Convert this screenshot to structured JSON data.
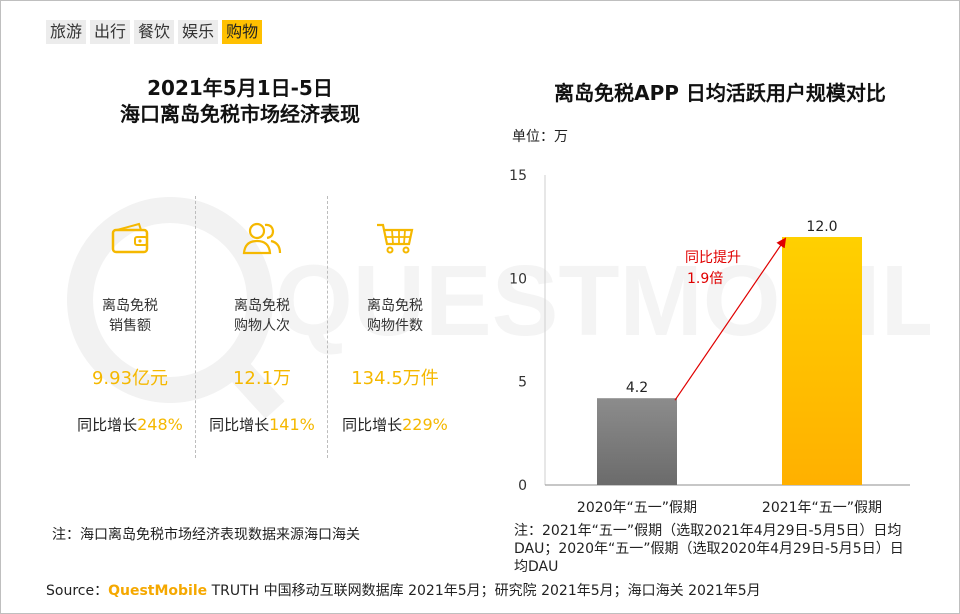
{
  "tabs": [
    {
      "label": "旅游",
      "active": false
    },
    {
      "label": "出行",
      "active": false
    },
    {
      "label": "餐饮",
      "active": false
    },
    {
      "label": "娱乐",
      "active": false
    },
    {
      "label": "购物",
      "active": true
    }
  ],
  "left": {
    "title_line1": "2021年5月1日-5日",
    "title_line2": "海口离岛免税市场经济表现",
    "metrics": [
      {
        "icon": "wallet-icon",
        "label_line1": "离岛免税",
        "label_line2": "销售额",
        "value": "9.93亿元",
        "growth_prefix": "同比增长",
        "growth_pct": "248%"
      },
      {
        "icon": "users-icon",
        "label_line1": "离岛免税",
        "label_line2": "购物人次",
        "value": "12.1万",
        "growth_prefix": "同比增长",
        "growth_pct": "141%"
      },
      {
        "icon": "cart-icon",
        "label_line1": "离岛免税",
        "label_line2": "购物件数",
        "value": "134.5万件",
        "growth_prefix": "同比增长",
        "growth_pct": "229%"
      }
    ],
    "note": "注：海口离岛免税市场经济表现数据来源海口海关"
  },
  "right": {
    "title": "离岛免税APP 日均活跃用户规模对比",
    "unit": "单位：万",
    "note": "注：2021年“五一”假期（选取2021年4月29日-5月5日）日均DAU；2020年“五一”假期（选取2020年4月29日-5月5日）日均DAU"
  },
  "chart_data": {
    "type": "bar",
    "title": "离岛免税APP 日均活跃用户规模对比",
    "ylabel": "单位：万",
    "categories": [
      "2020年“五一”假期",
      "2021年“五一”假期"
    ],
    "values": [
      4.2,
      12.0
    ],
    "value_labels": [
      "4.2",
      "12.0"
    ],
    "ylim": [
      0,
      15
    ],
    "yticks": [
      0,
      5,
      10,
      15
    ],
    "grid": false,
    "colors": [
      "#7f7f7f",
      "#ffc000"
    ],
    "annotation": {
      "line1": "同比提升",
      "line2": "1.9倍",
      "color": "#e00000"
    }
  },
  "watermark": "QUESTMOBILE",
  "source": {
    "prefix": "Source：",
    "brand": "QuestMobile",
    "rest": " TRUTH 中国移动互联网数据库 2021年5月；研究院 2021年5月；海口海关 2021年5月"
  }
}
